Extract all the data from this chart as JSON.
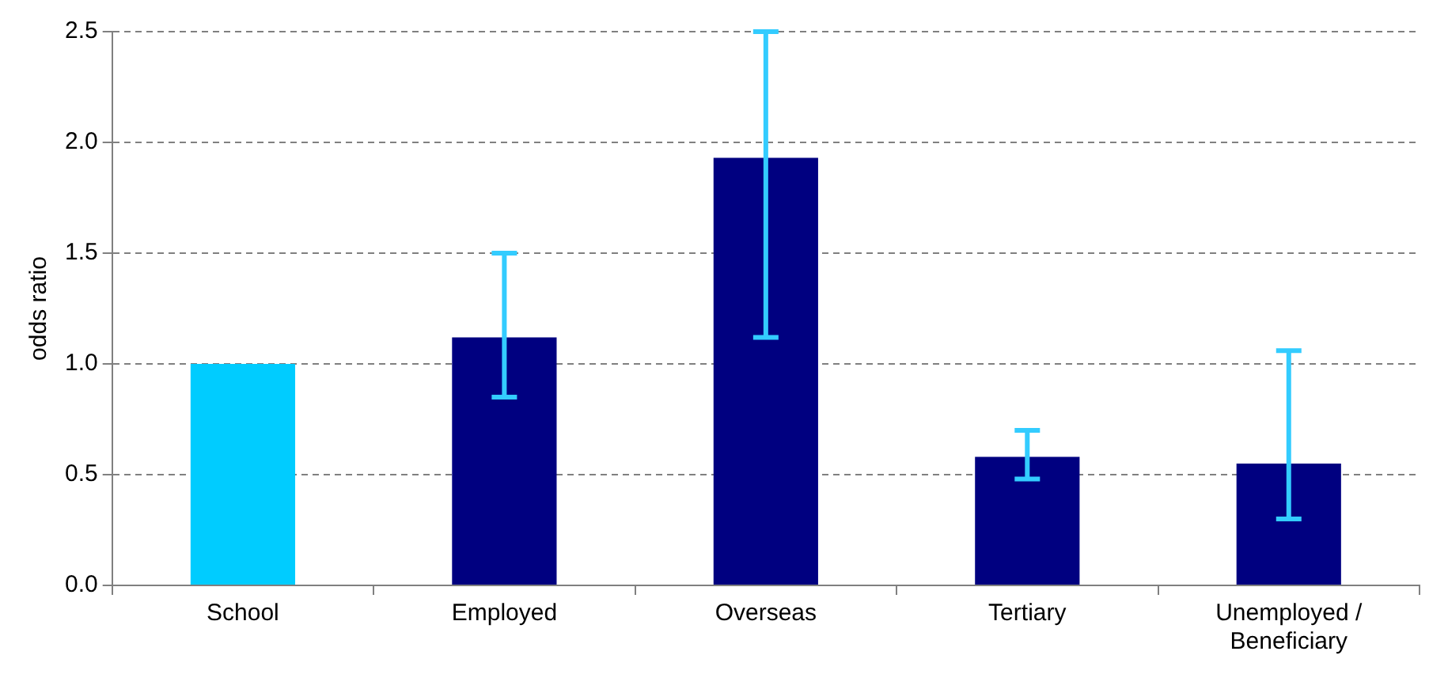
{
  "chart_data": {
    "type": "bar",
    "ylabel": "odds ratio",
    "categories": [
      "School",
      "Employed",
      "Overseas",
      "Tertiary",
      "Unemployed / Beneficiary"
    ],
    "values": [
      1.0,
      1.12,
      1.93,
      0.58,
      0.55
    ],
    "colors": [
      "#00ccff",
      "#000080",
      "#000080",
      "#000080",
      "#000080"
    ],
    "errors": [
      null,
      [
        0.85,
        1.5
      ],
      [
        1.12,
        2.5
      ],
      [
        0.48,
        0.7
      ],
      [
        0.3,
        1.06
      ]
    ],
    "ylim": [
      0,
      2.5
    ],
    "yticks": [
      {
        "value": 0,
        "label": "0.0"
      },
      {
        "value": 0.5,
        "label": "0.5"
      },
      {
        "value": 1,
        "label": "1.0"
      },
      {
        "value": 1.5,
        "label": "1.5"
      },
      {
        "value": 2,
        "label": "2.0"
      },
      {
        "value": 2.5,
        "label": "2.5"
      }
    ],
    "grid": "y",
    "legend": false
  }
}
